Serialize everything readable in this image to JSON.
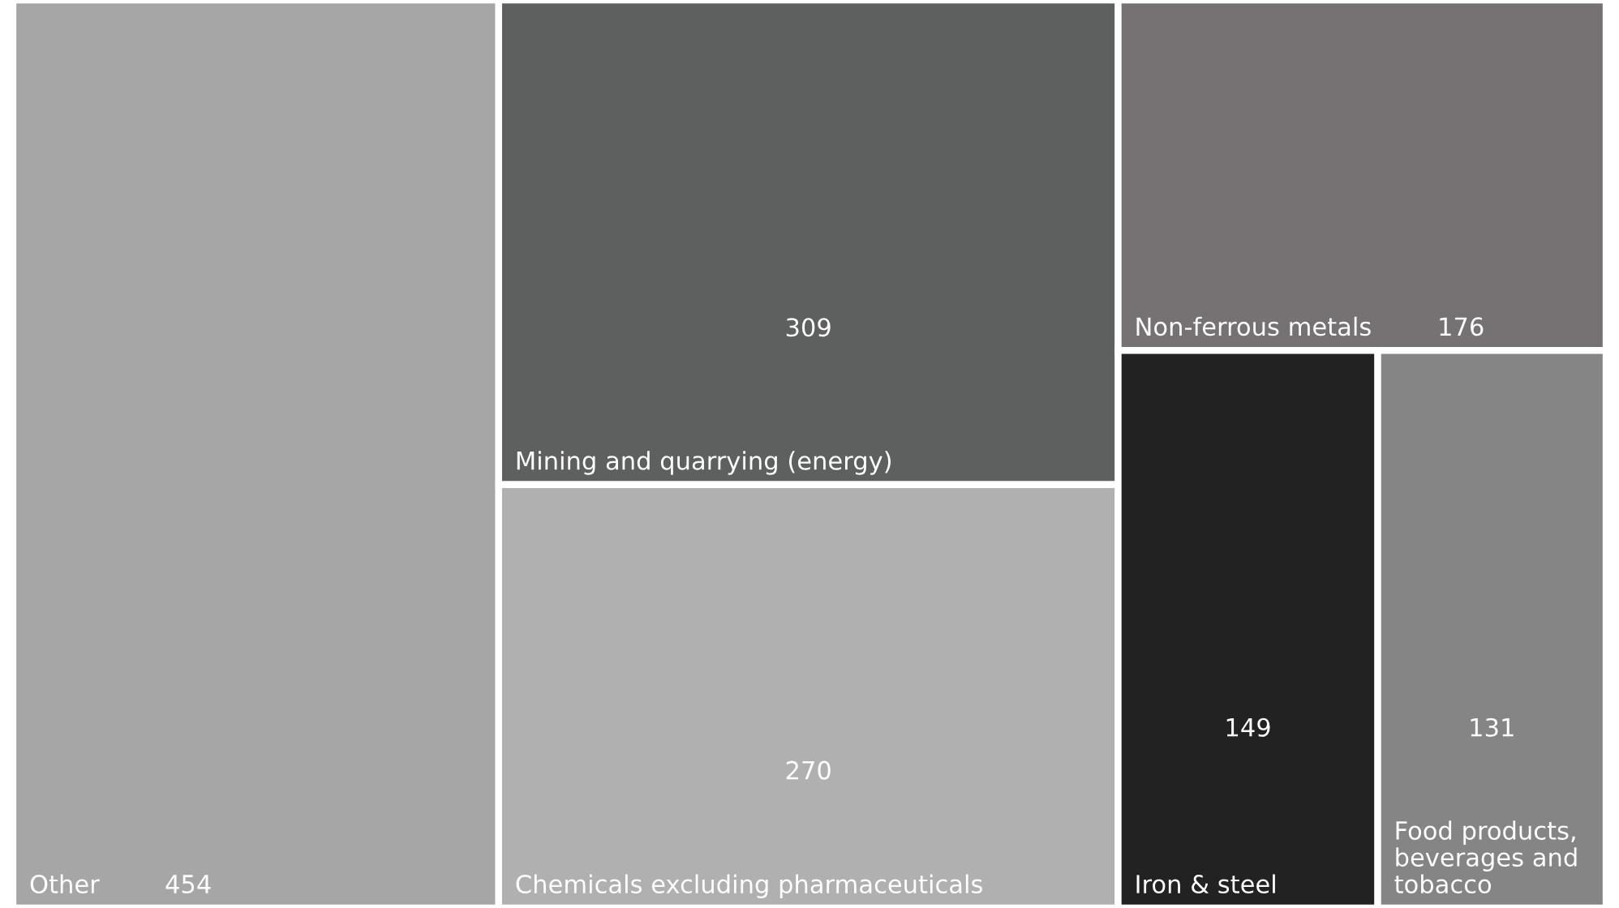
{
  "chart_data": {
    "type": "other",
    "categories": [
      "Other",
      "Mining and quarrying (energy)",
      "Chemicals excluding pharmaceuticals",
      "Non-ferrous metals",
      "Iron & steel",
      "Food products, beverages and tobacco"
    ],
    "values": [
      454,
      309,
      270,
      176,
      149,
      131
    ],
    "colors": [
      "#a6a6a6",
      "#5e605f",
      "#b0b0b0",
      "#767273",
      "#222222",
      "#858585"
    ],
    "data_labels": true
  }
}
